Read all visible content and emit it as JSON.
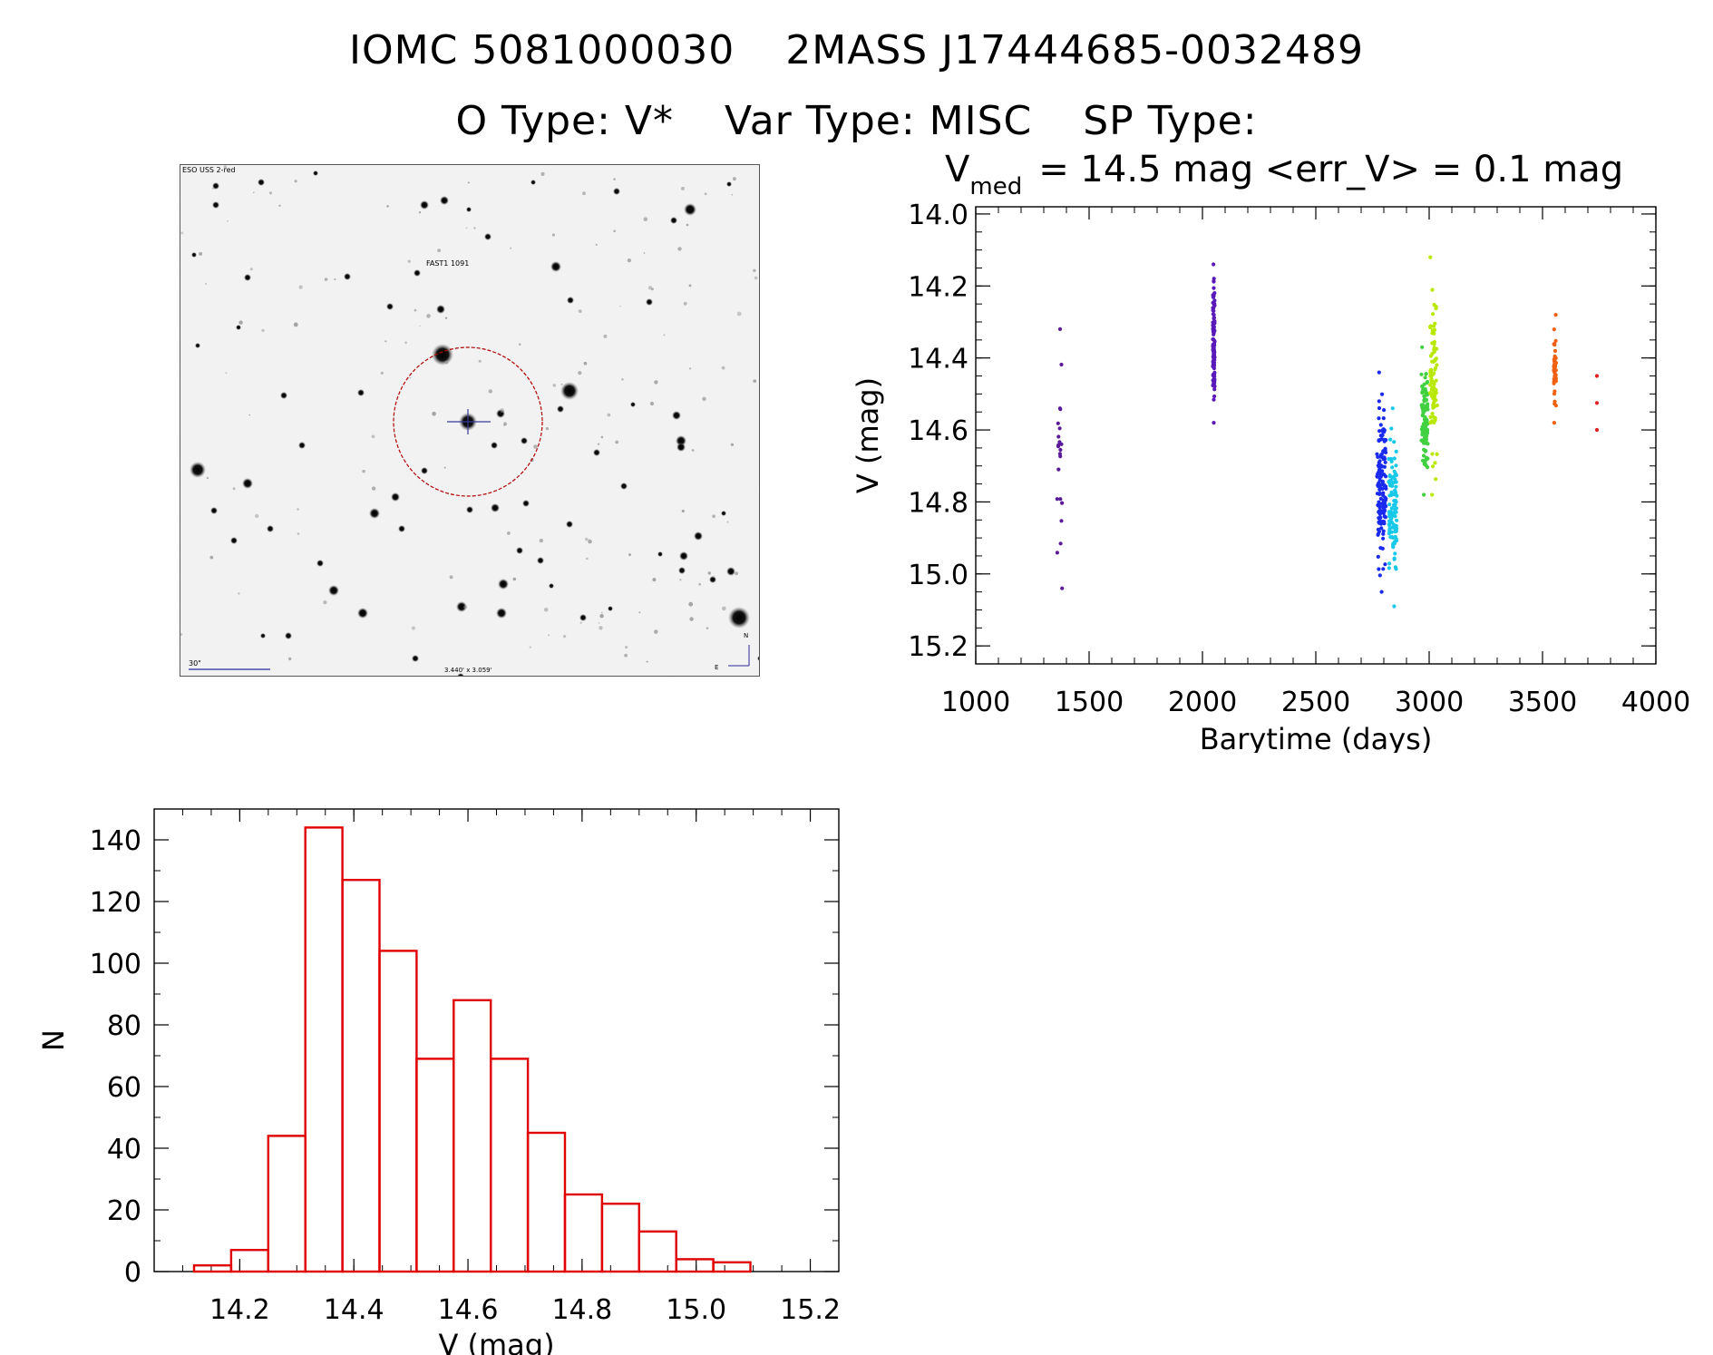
{
  "header": {
    "id1": "IOMC 5081000030",
    "id2": "2MASS J17444685-0032489",
    "otype": "O Type: V*",
    "vartype": "Var Type: MISC",
    "sptype": "SP Type:"
  },
  "finder": {
    "survey_label": "ESO USS 2-red",
    "object_label": "FAST1 1091",
    "scale_label": "30\"",
    "center_label": "3.440' x 3.059'",
    "north_label": "N",
    "east_label": "E",
    "ring_color": "#b00000",
    "label_color": "#cc0000",
    "marker_color": "#3a3a9a"
  },
  "chart_data": [
    {
      "type": "scatter",
      "title_main": "V",
      "title_sub": "med",
      "title_rest": "= 14.5 mag <err_V> = 0.1 mag",
      "xlabel": "Barytime (days)",
      "ylabel": "V (mag)",
      "xlim": [
        1000,
        4000
      ],
      "ylim": [
        15.25,
        13.98
      ],
      "y_inverted": true,
      "x_ticks": [
        1000,
        1500,
        2000,
        2500,
        3000,
        3500,
        4000
      ],
      "y_ticks": [
        "14.0",
        "14.2",
        "14.4",
        "14.6",
        "14.8",
        "15.0",
        "15.2"
      ],
      "color_scheme": "rainbow by time",
      "groups": [
        {
          "color": "#5a1a9a",
          "x": 1370,
          "ymin": 14.32,
          "ymax": 15.04,
          "n": 22,
          "spread": 12
        },
        {
          "color": "#5a1aba",
          "x": 2050,
          "ymin": 14.14,
          "ymax": 14.58,
          "n": 120,
          "spread": 4
        },
        {
          "color": "#1a2aee",
          "x": 2790,
          "ymin": 14.44,
          "ymax": 15.05,
          "n": 140,
          "spread": 20
        },
        {
          "color": "#18c8e8",
          "x": 2840,
          "ymin": 14.54,
          "ymax": 15.09,
          "n": 110,
          "spread": 18
        },
        {
          "color": "#40d040",
          "x": 2980,
          "ymin": 14.37,
          "ymax": 14.78,
          "n": 110,
          "spread": 14
        },
        {
          "color": "#b8e800",
          "x": 3020,
          "ymin": 14.12,
          "ymax": 14.78,
          "n": 90,
          "spread": 16
        },
        {
          "color": "#f06010",
          "x": 3555,
          "ymin": 14.28,
          "ymax": 14.58,
          "n": 45,
          "spread": 5
        },
        {
          "color": "#e02020",
          "x": 3740,
          "ymin": 14.45,
          "ymax": 14.6,
          "n": 3,
          "spread": 0
        }
      ]
    },
    {
      "type": "bar",
      "subtype": "histogram",
      "xlabel": "V (mag)",
      "ylabel": "N",
      "xlim": [
        14.05,
        15.25
      ],
      "ylim": [
        0,
        150
      ],
      "x_ticks": [
        "14.2",
        "14.4",
        "14.6",
        "14.8",
        "15.0",
        "15.2"
      ],
      "y_ticks": [
        "0",
        "20",
        "40",
        "60",
        "80",
        "100",
        "120",
        "140"
      ],
      "bar_color": "#e00000",
      "bins": [
        14.12,
        14.185,
        14.25,
        14.315,
        14.38,
        14.445,
        14.51,
        14.575,
        14.64,
        14.705,
        14.77,
        14.835,
        14.9,
        14.965,
        15.03,
        15.095
      ],
      "counts": [
        2,
        7,
        44,
        144,
        127,
        104,
        69,
        88,
        69,
        45,
        25,
        22,
        13,
        4,
        3
      ]
    }
  ]
}
